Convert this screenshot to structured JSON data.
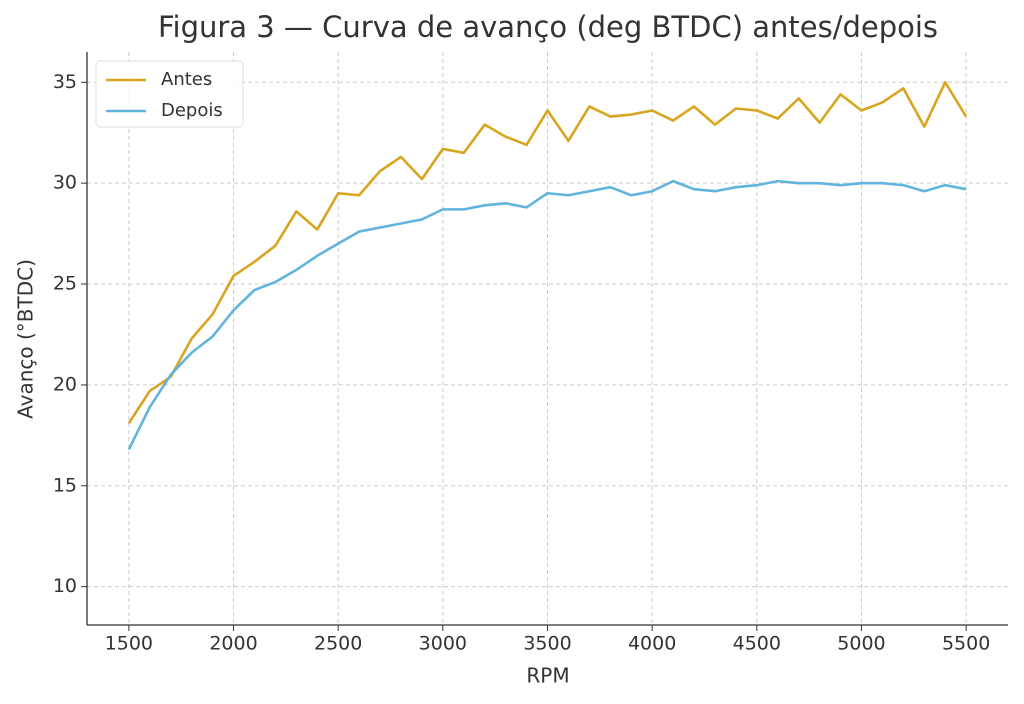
{
  "chart_data": {
    "type": "line",
    "title": "Figura 3 — Curva de avanço (deg BTDC) antes/depois",
    "x_label": "RPM",
    "y_label": "Avanço (°BTDC)",
    "x": [
      1500,
      1600,
      1700,
      1800,
      1900,
      2000,
      2100,
      2200,
      2300,
      2400,
      2500,
      2600,
      2700,
      2800,
      2900,
      3000,
      3100,
      3200,
      3300,
      3400,
      3500,
      3600,
      3700,
      3800,
      3900,
      4000,
      4100,
      4200,
      4300,
      4400,
      4500,
      4600,
      4700,
      4800,
      4900,
      5000,
      5100,
      5200,
      5300,
      5400,
      5500
    ],
    "series": [
      {
        "name": "Antes",
        "color": "#d9a521",
        "values": [
          18.1,
          19.7,
          20.4,
          22.3,
          23.5,
          25.4,
          26.1,
          26.9,
          28.6,
          27.7,
          29.5,
          29.4,
          30.6,
          31.3,
          30.2,
          31.7,
          31.5,
          32.9,
          32.3,
          31.9,
          33.6,
          32.1,
          33.8,
          33.3,
          33.4,
          33.6,
          33.1,
          33.8,
          32.9,
          33.7,
          33.6,
          33.2,
          34.2,
          33.0,
          34.4,
          33.6,
          34.0,
          34.7,
          32.8,
          35.0,
          33.3
        ]
      },
      {
        "name": "Depois",
        "color": "#62b4dc",
        "values": [
          16.8,
          18.9,
          20.5,
          21.6,
          22.4,
          23.7,
          24.7,
          25.1,
          25.7,
          26.4,
          27.0,
          27.6,
          27.8,
          28.0,
          28.2,
          28.7,
          28.7,
          28.9,
          29.0,
          28.8,
          29.5,
          29.4,
          29.6,
          29.8,
          29.4,
          29.6,
          30.1,
          29.7,
          29.6,
          29.8,
          29.9,
          30.1,
          30.0,
          30.0,
          29.9,
          30.0,
          30.0,
          29.9,
          29.6,
          29.9,
          29.7
        ]
      }
    ],
    "xlim": [
      1300,
      5700
    ],
    "ylim": [
      8.1,
      36.5
    ],
    "xticks": [
      1500,
      2000,
      2500,
      3000,
      3500,
      4000,
      4500,
      5000,
      5500
    ],
    "yticks": [
      10,
      15,
      20,
      25,
      30,
      35
    ],
    "grid": true,
    "legend": "upper-left"
  }
}
